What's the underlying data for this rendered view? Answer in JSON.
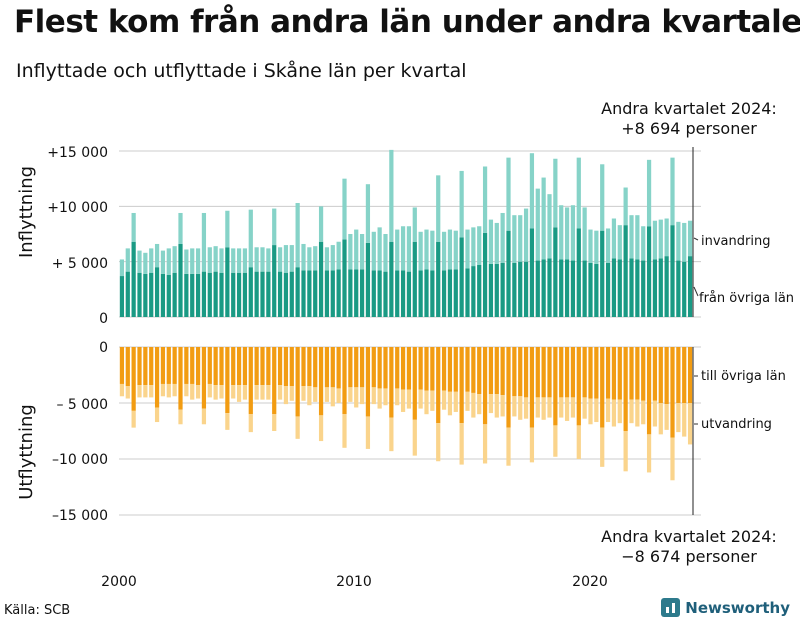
{
  "title": "Flest kom från andra län under andra kvartalet",
  "subtitle": "Inflyttade och utflyttade i Skåne län per kvartal",
  "source": "Källa: SCB",
  "brand": "Newsworthy",
  "colors": {
    "invandring": "#86d3c8",
    "fran_ovriga_lan": "#1a9a84",
    "till_ovriga_lan": "#f29c12",
    "utvandring": "#fad48c",
    "grid": "#cccccc"
  },
  "chart_data": {
    "type": "bar",
    "x_start": "2000 Q1",
    "x_ticks": [
      "2000",
      "2010",
      "2020"
    ],
    "panels": [
      {
        "ylabel": "Inflyttning",
        "yticks": [
          "+15 000",
          "+10 000",
          "+ 5 000",
          "0"
        ],
        "ylim": [
          0,
          15000
        ],
        "series": [
          {
            "name": "från övriga län",
            "values": [
              3700,
              4100,
              6800,
              4000,
              3900,
              4000,
              4500,
              3900,
              3800,
              4000,
              6600,
              3900,
              3900,
              3900,
              4100,
              4000,
              4100,
              4000,
              6300,
              4000,
              4000,
              4000,
              4500,
              4100,
              4100,
              4100,
              6500,
              4100,
              4000,
              4100,
              4500,
              4200,
              4200,
              4200,
              6800,
              4200,
              4200,
              4300,
              7000,
              4300,
              4300,
              4300,
              6700,
              4200,
              4200,
              4100,
              6800,
              4200,
              4200,
              4100,
              6800,
              4200,
              4300,
              4200,
              6800,
              4200,
              4300,
              4300,
              7200,
              4400,
              4600,
              4700,
              7600,
              4800,
              4800,
              4900,
              7800,
              4900,
              5000,
              5000,
              8000,
              5100,
              5200,
              5300,
              8100,
              5200,
              5200,
              5100,
              8000,
              5100,
              4900,
              4800,
              7800,
              4900,
              5300,
              5200,
              8300,
              5300,
              5200,
              5100,
              8200,
              5200,
              5300,
              5500,
              8300,
              5100,
              5000,
              5500
            ]
          },
          {
            "name": "invandring",
            "values": [
              1500,
              2100,
              2600,
              2000,
              1900,
              2200,
              2100,
              2100,
              2400,
              2400,
              2800,
              2200,
              2300,
              2300,
              5300,
              2300,
              2300,
              2200,
              3300,
              2200,
              2200,
              2200,
              5200,
              2200,
              2200,
              2100,
              3300,
              2200,
              2500,
              2400,
              5800,
              2400,
              2100,
              2200,
              3200,
              2100,
              2300,
              2500,
              5500,
              3200,
              3600,
              3200,
              5300,
              3500,
              3900,
              3400,
              8300,
              3700,
              4000,
              4100,
              3100,
              3500,
              3600,
              3600,
              6000,
              3500,
              3600,
              3500,
              6000,
              3500,
              3500,
              3500,
              6000,
              4000,
              3700,
              4500,
              6600,
              4300,
              4200,
              4800,
              6800,
              6500,
              7400,
              5800,
              6200,
              4900,
              4700,
              5000,
              6400,
              4800,
              3000,
              3000,
              6000,
              3100,
              3600,
              3100,
              3400,
              3900,
              4000,
              3100,
              6000,
              3500,
              3500,
              3400,
              6100,
              3500,
              3500,
              3200
            ]
          }
        ]
      },
      {
        "ylabel": "Utflyttning",
        "yticks": [
          "0",
          "– 5 000",
          "–10 000",
          "–15 000"
        ],
        "ylim": [
          -15000,
          0
        ],
        "series": [
          {
            "name": "till övriga län",
            "values": [
              -3300,
              -3500,
              -5700,
              -3400,
              -3400,
              -3400,
              -5400,
              -3300,
              -3300,
              -3300,
              -5600,
              -3300,
              -3300,
              -3400,
              -5500,
              -3300,
              -3400,
              -3400,
              -5900,
              -3400,
              -3400,
              -3400,
              -6000,
              -3400,
              -3400,
              -3400,
              -6000,
              -3400,
              -3500,
              -3500,
              -6200,
              -3500,
              -3500,
              -3600,
              -6100,
              -3600,
              -3600,
              -3700,
              -6000,
              -3600,
              -3600,
              -3600,
              -6200,
              -3600,
              -3700,
              -3700,
              -6300,
              -3700,
              -3800,
              -3800,
              -6500,
              -3800,
              -3900,
              -3900,
              -6800,
              -3900,
              -4000,
              -4000,
              -6800,
              -4000,
              -4100,
              -4200,
              -6900,
              -4200,
              -4200,
              -4300,
              -7200,
              -4400,
              -4400,
              -4500,
              -7200,
              -4500,
              -4500,
              -4500,
              -7000,
              -4500,
              -4500,
              -4500,
              -7000,
              -4500,
              -4600,
              -4600,
              -7200,
              -4600,
              -4700,
              -4700,
              -7500,
              -4700,
              -4700,
              -4800,
              -7800,
              -4800,
              -5000,
              -5100,
              -8100,
              -5000,
              -5000,
              -5000
            ]
          },
          {
            "name": "utvandring",
            "values": [
              -1100,
              -1100,
              -1500,
              -1100,
              -1100,
              -1100,
              -1300,
              -1100,
              -1200,
              -1100,
              -1300,
              -1100,
              -1400,
              -1200,
              -1400,
              -1200,
              -1300,
              -1200,
              -1500,
              -1200,
              -1500,
              -1300,
              -1600,
              -1300,
              -1300,
              -1300,
              -1500,
              -1300,
              -1600,
              -1300,
              -2000,
              -1300,
              -1700,
              -1300,
              -2300,
              -1300,
              -1700,
              -1300,
              -3000,
              -1300,
              -1800,
              -1500,
              -2900,
              -1500,
              -1800,
              -1500,
              -3000,
              -1500,
              -2000,
              -1700,
              -3200,
              -1700,
              -2100,
              -1800,
              -3400,
              -1700,
              -2100,
              -1800,
              -3700,
              -1700,
              -2200,
              -1800,
              -3500,
              -1700,
              -2100,
              -1900,
              -3400,
              -1800,
              -2100,
              -1900,
              -3100,
              -1800,
              -2000,
              -1800,
              -2800,
              -1800,
              -2100,
              -1800,
              -3000,
              -1900,
              -2300,
              -2100,
              -3500,
              -2100,
              -2400,
              -2100,
              -3600,
              -2100,
              -2400,
              -2100,
              -3400,
              -2300,
              -2800,
              -2300,
              -3800,
              -2600,
              -3000,
              -3700
            ]
          }
        ]
      }
    ],
    "annotations": {
      "top": [
        "Andra kvartalet 2024:",
        "+8 694 personer"
      ],
      "bottom": [
        "Andra kvartalet 2024:",
        "−8 674 personer"
      ]
    }
  }
}
